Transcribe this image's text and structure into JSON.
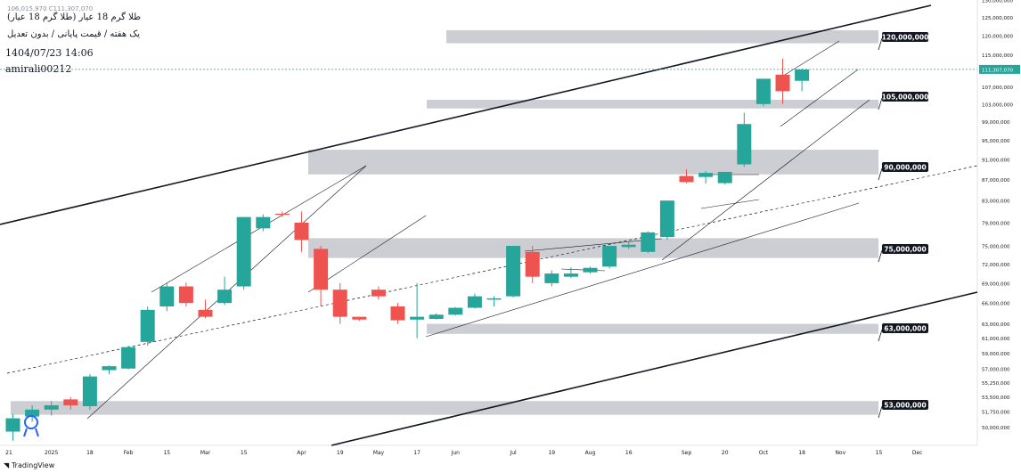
{
  "header": {
    "ohlc_line": "106,015,970  C111,307,070",
    "title": "طلا گرم 18 عیار (طلا گرم 18 عیار)",
    "subtitle": "یک هفته / قیمت پایانی / بدون تعدیل",
    "datetime": "1404/07/23 14:06",
    "author": "amirali00212"
  },
  "watermark": "TradingView",
  "colors": {
    "up": "#26a69a",
    "down": "#ef5350",
    "zone": "#c4c6cb",
    "price_line": "#26a69a"
  },
  "chart_data": {
    "type": "candlestick",
    "y_axis": {
      "scale": "log",
      "ylim": [
        48000000,
        130000000
      ],
      "tick_labels": [
        "130,000,000",
        "125,000,000",
        "120,000,000",
        "115,000,000",
        "111,307,070",
        "107,000,000",
        "103,000,000",
        "99,000,000",
        "95,000,000",
        "91,000,000",
        "87,000,000",
        "83,000,000",
        "79,000,000",
        "75,000,000",
        "72,000,000",
        "69,000,000",
        "66,000,000",
        "63,000,000",
        "61,000,000",
        "59,000,000",
        "57,000,000",
        "55,250,000",
        "53,500,000",
        "51,750,000",
        "50,000,000"
      ],
      "tick_values": [
        130000000,
        125000000,
        120000000,
        115000000,
        111307070,
        107000000,
        103000000,
        99000000,
        95000000,
        91000000,
        87000000,
        83000000,
        79000000,
        75000000,
        72000000,
        69000000,
        66000000,
        63000000,
        61000000,
        59000000,
        57000000,
        55250000,
        53500000,
        51750000,
        50000000
      ],
      "last_price": 111307070
    },
    "x_axis": {
      "tick_labels": [
        "21",
        "2025",
        "18",
        "Feb",
        "15",
        "Mar",
        "15",
        "Apr",
        "19",
        "May",
        "17",
        "Jun",
        "Jul",
        "19",
        "Aug",
        "16",
        "Sep",
        "20",
        "Oct",
        "18",
        "Nov",
        "15",
        "Dec"
      ],
      "tick_weeks": [
        0,
        2,
        4,
        6,
        8,
        10,
        12,
        15,
        17,
        19,
        21,
        23,
        26,
        28,
        30,
        32,
        35,
        37,
        39,
        41,
        43,
        45,
        47
      ]
    },
    "candles": [
      {
        "o": 49500000,
        "h": 51500000,
        "l": 48500000,
        "c": 51000000
      },
      {
        "o": 51200000,
        "h": 52500000,
        "l": 50600000,
        "c": 52000000
      },
      {
        "o": 52000000,
        "h": 53000000,
        "l": 51300000,
        "c": 52500000
      },
      {
        "o": 53200000,
        "h": 53500000,
        "l": 52000000,
        "c": 52500000
      },
      {
        "o": 52400000,
        "h": 56300000,
        "l": 52000000,
        "c": 56000000
      },
      {
        "o": 56800000,
        "h": 57400000,
        "l": 56300000,
        "c": 57300000
      },
      {
        "o": 57000000,
        "h": 60000000,
        "l": 56900000,
        "c": 59800000
      },
      {
        "o": 60500000,
        "h": 65500000,
        "l": 60000000,
        "c": 65000000
      },
      {
        "o": 65500000,
        "h": 69000000,
        "l": 64800000,
        "c": 68500000
      },
      {
        "o": 68500000,
        "h": 69100000,
        "l": 65500000,
        "c": 66000000
      },
      {
        "o": 65000000,
        "h": 66500000,
        "l": 63800000,
        "c": 64000000
      },
      {
        "o": 66000000,
        "h": 70000000,
        "l": 65700000,
        "c": 68000000
      },
      {
        "o": 68500000,
        "h": 80000000,
        "l": 68000000,
        "c": 80000000
      },
      {
        "o": 78000000,
        "h": 80500000,
        "l": 77500000,
        "c": 80000000
      },
      {
        "o": 80600000,
        "h": 81000000,
        "l": 80000000,
        "c": 80500000
      },
      {
        "o": 79000000,
        "h": 81000000,
        "l": 74000000,
        "c": 76000000
      },
      {
        "o": 74500000,
        "h": 75000000,
        "l": 65500000,
        "c": 68000000
      },
      {
        "o": 68000000,
        "h": 69000000,
        "l": 63000000,
        "c": 64000000
      },
      {
        "o": 64000000,
        "h": 64000000,
        "l": 63400000,
        "c": 63600000
      },
      {
        "o": 68000000,
        "h": 68500000,
        "l": 66500000,
        "c": 67000000
      },
      {
        "o": 65500000,
        "h": 66000000,
        "l": 63000000,
        "c": 63500000
      },
      {
        "o": 63600000,
        "h": 69000000,
        "l": 61000000,
        "c": 64000000
      },
      {
        "o": 63700000,
        "h": 64500000,
        "l": 63600000,
        "c": 64300000
      },
      {
        "o": 64300000,
        "h": 65400000,
        "l": 64200000,
        "c": 65300000
      },
      {
        "o": 65300000,
        "h": 67400000,
        "l": 65200000,
        "c": 67000000
      },
      {
        "o": 66500000,
        "h": 67000000,
        "l": 65500000,
        "c": 66700000
      },
      {
        "o": 67000000,
        "h": 75000000,
        "l": 66800000,
        "c": 75000000
      },
      {
        "o": 74000000,
        "h": 75000000,
        "l": 69000000,
        "c": 70000000
      },
      {
        "o": 69000000,
        "h": 71000000,
        "l": 68500000,
        "c": 70500000
      },
      {
        "o": 70000000,
        "h": 71500000,
        "l": 69800000,
        "c": 70500000
      },
      {
        "o": 70700000,
        "h": 71600000,
        "l": 70500000,
        "c": 71400000
      },
      {
        "o": 71600000,
        "h": 75000000,
        "l": 71300000,
        "c": 75000000
      },
      {
        "o": 74800000,
        "h": 75800000,
        "l": 74500000,
        "c": 75200000
      },
      {
        "o": 74000000,
        "h": 77500000,
        "l": 73800000,
        "c": 77300000
      },
      {
        "o": 76500000,
        "h": 83000000,
        "l": 76000000,
        "c": 83000000
      },
      {
        "o": 87700000,
        "h": 89000000,
        "l": 86300000,
        "c": 86500000
      },
      {
        "o": 87500000,
        "h": 88700000,
        "l": 86200000,
        "c": 88300000
      },
      {
        "o": 86300000,
        "h": 88500000,
        "l": 86000000,
        "c": 88500000
      },
      {
        "o": 90000000,
        "h": 101000000,
        "l": 89500000,
        "c": 98500000
      },
      {
        "o": 103000000,
        "h": 109000000,
        "l": 102500000,
        "c": 109000000
      },
      {
        "o": 110000000,
        "h": 114000000,
        "l": 103000000,
        "c": 106000000
      },
      {
        "o": 108500000,
        "h": 111500000,
        "l": 106000000,
        "c": 111300000
      }
    ],
    "zones": [
      {
        "label": "120,000,000",
        "low": 118000000,
        "high": 121500000
      },
      {
        "label": "105,000,000",
        "low": 102000000,
        "high": 104000000
      },
      {
        "label": "90,000,000",
        "low": 88000000,
        "high": 93000000
      },
      {
        "label": "75,000,000",
        "low": 73000000,
        "high": 76300000
      },
      {
        "label": "63,000,000",
        "low": 61600000,
        "high": 63000000
      },
      {
        "label": "53,000,000",
        "low": 51400000,
        "high": 53000000
      }
    ]
  }
}
